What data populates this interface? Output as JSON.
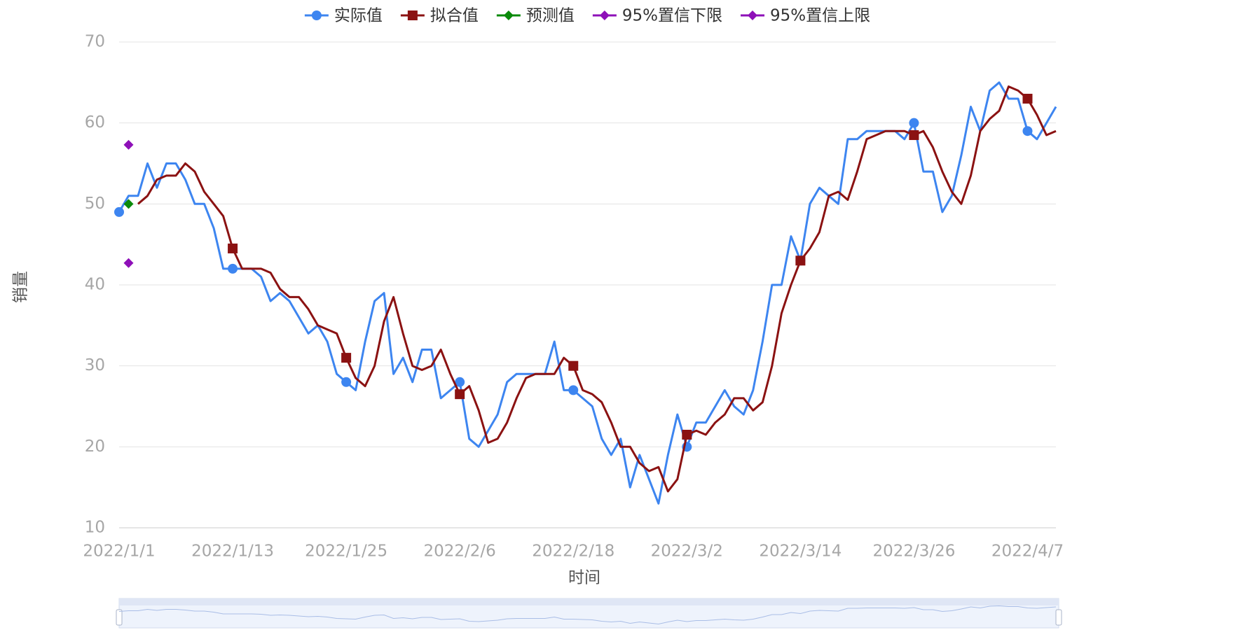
{
  "chart_data": {
    "type": "line",
    "x_label": "时间",
    "y_label": "销量",
    "categories": [
      "2022/1/1",
      null,
      null,
      null,
      null,
      null,
      null,
      null,
      null,
      null,
      null,
      null,
      "2022/1/13",
      null,
      null,
      null,
      null,
      null,
      null,
      null,
      null,
      null,
      null,
      null,
      "2022/1/25",
      null,
      null,
      null,
      null,
      null,
      null,
      null,
      null,
      null,
      null,
      null,
      "2022/2/6",
      null,
      null,
      null,
      null,
      null,
      null,
      null,
      null,
      null,
      null,
      null,
      "2022/2/18",
      null,
      null,
      null,
      null,
      null,
      null,
      null,
      null,
      null,
      null,
      null,
      "2022/3/2",
      null,
      null,
      null,
      null,
      null,
      null,
      null,
      null,
      null,
      null,
      null,
      "2022/3/14",
      null,
      null,
      null,
      null,
      null,
      null,
      null,
      null,
      null,
      null,
      null,
      "2022/3/26",
      null,
      null,
      null,
      null,
      null,
      null,
      null,
      null,
      null,
      null,
      null,
      "2022/4/7",
      null,
      null,
      null
    ],
    "ylim": [
      10,
      70
    ],
    "yticks": [
      10,
      20,
      30,
      40,
      50,
      60,
      70
    ],
    "grid": true,
    "legend": "top",
    "series": [
      {
        "name": "实际值",
        "color": "#3d85f0",
        "marker": "circle",
        "values": [
          49,
          51,
          51,
          55,
          52,
          55,
          55,
          53,
          50,
          50,
          47,
          42,
          42,
          42,
          42,
          41,
          38,
          39,
          38,
          36,
          34,
          35,
          33,
          29,
          28,
          27,
          33,
          38,
          39,
          29,
          31,
          28,
          32,
          32,
          26,
          27,
          28,
          21,
          20,
          22,
          24,
          28,
          29,
          29,
          29,
          29,
          33,
          27,
          27,
          26,
          25,
          21,
          19,
          21,
          15,
          19,
          16,
          13,
          19,
          24,
          20,
          23,
          23,
          25,
          27,
          25,
          24,
          27,
          33,
          40,
          40,
          46,
          43,
          50,
          52,
          51,
          50,
          58,
          58,
          59,
          59,
          59,
          59,
          58,
          60,
          54,
          54,
          49,
          51,
          56,
          62,
          59,
          64,
          65,
          63,
          63,
          59,
          58,
          60,
          62
        ]
      },
      {
        "name": "拟合值",
        "color": "#8b1212",
        "marker": "square",
        "values": [
          null,
          null,
          50,
          51,
          53,
          53.5,
          53.5,
          55,
          54,
          51.5,
          50,
          48.5,
          44.5,
          42,
          42,
          42,
          41.5,
          39.5,
          38.5,
          38.5,
          37,
          35,
          34.5,
          34,
          31,
          28.5,
          27.5,
          30,
          35.5,
          38.5,
          34,
          30,
          29.5,
          30,
          32,
          29,
          26.5,
          27.5,
          24.5,
          20.5,
          21,
          23,
          26,
          28.5,
          29,
          29,
          29,
          31,
          30,
          27,
          26.5,
          25.5,
          23,
          20,
          20,
          18,
          17,
          17.5,
          14.5,
          16,
          21.5,
          22,
          21.5,
          23,
          24,
          26,
          26,
          24.5,
          25.5,
          30,
          36.5,
          40,
          43,
          44.5,
          46.5,
          51,
          51.5,
          50.5,
          54,
          58,
          58.5,
          59,
          59,
          59,
          58.5,
          59,
          57,
          54,
          51.5,
          50,
          53.5,
          59,
          60.5,
          61.5,
          64.5,
          64,
          63,
          61,
          58.5,
          59
        ]
      },
      {
        "name": "预测值",
        "color": "#0a8a0a",
        "marker": "diamond",
        "values": [
          null,
          50,
          null,
          null,
          null,
          null,
          null,
          null,
          null,
          null,
          null,
          null,
          null,
          null,
          null,
          null,
          null,
          null,
          null,
          null,
          null,
          null,
          null,
          null,
          null,
          null,
          null,
          null,
          null,
          null,
          null,
          null,
          null,
          null,
          null,
          null,
          null,
          null,
          null,
          null,
          null,
          null,
          null,
          null,
          null,
          null,
          null,
          null,
          null,
          null,
          null,
          null,
          null,
          null,
          null,
          null,
          null,
          null,
          null,
          null,
          null,
          null,
          null,
          null,
          null,
          null,
          null,
          null,
          null,
          null,
          null,
          null,
          null,
          null,
          null,
          null,
          null,
          null,
          null,
          null,
          null,
          null,
          null,
          null,
          null,
          null,
          null,
          null,
          null,
          null,
          null,
          null,
          null,
          null,
          null,
          null,
          null,
          null,
          null,
          null
        ]
      },
      {
        "name": "95%置信下限",
        "color": "#8e10b8",
        "marker": "diamond",
        "values": [
          null,
          42.7,
          null,
          null,
          null,
          null,
          null,
          null,
          null,
          null,
          null,
          null,
          null,
          null,
          null,
          null,
          null,
          null,
          null,
          null,
          null,
          null,
          null,
          null,
          null,
          null,
          null,
          null,
          null,
          null,
          null,
          null,
          null,
          null,
          null,
          null,
          null,
          null,
          null,
          null,
          null,
          null,
          null,
          null,
          null,
          null,
          null,
          null,
          null,
          null,
          null,
          null,
          null,
          null,
          null,
          null,
          null,
          null,
          null,
          null,
          null,
          null,
          null,
          null,
          null,
          null,
          null,
          null,
          null,
          null,
          null,
          null,
          null,
          null,
          null,
          null,
          null,
          null,
          null,
          null,
          null,
          null,
          null,
          null,
          null,
          null,
          null,
          null,
          null,
          null,
          null,
          null,
          null,
          null,
          null,
          null,
          null,
          null,
          null,
          null
        ]
      },
      {
        "name": "95%置信上限",
        "color": "#8e10b8",
        "marker": "diamond",
        "values": [
          null,
          57.3,
          null,
          null,
          null,
          null,
          null,
          null,
          null,
          null,
          null,
          null,
          null,
          null,
          null,
          null,
          null,
          null,
          null,
          null,
          null,
          null,
          null,
          null,
          null,
          null,
          null,
          null,
          null,
          null,
          null,
          null,
          null,
          null,
          null,
          null,
          null,
          null,
          null,
          null,
          null,
          null,
          null,
          null,
          null,
          null,
          null,
          null,
          null,
          null,
          null,
          null,
          null,
          null,
          null,
          null,
          null,
          null,
          null,
          null,
          null,
          null,
          null,
          null,
          null,
          null,
          null,
          null,
          null,
          null,
          null,
          null,
          null,
          null,
          null,
          null,
          null,
          null,
          null,
          null,
          null,
          null,
          null,
          null,
          null,
          null,
          null,
          null,
          null,
          null,
          null,
          null,
          null,
          null,
          null,
          null,
          null,
          null,
          null,
          null
        ]
      }
    ]
  }
}
